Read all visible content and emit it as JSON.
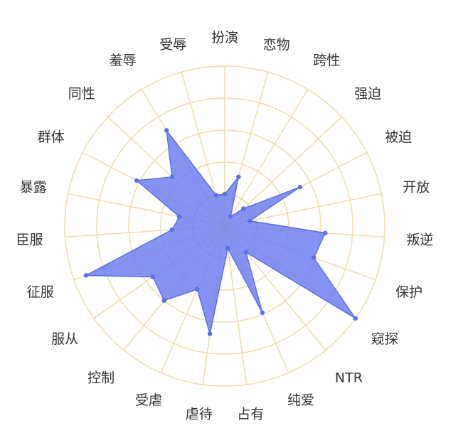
{
  "chart_data": {
    "type": "radar",
    "title": "",
    "categories": [
      "扮演",
      "恋物",
      "跨性",
      "强迫",
      "被迫",
      "开放",
      "叛逆",
      "保护",
      "窥探",
      "NTR",
      "纯爱",
      "占有",
      "虐待",
      "受虐",
      "控制",
      "服从",
      "征服",
      "臣服",
      "暴露",
      "群体",
      "同性",
      "羞辱",
      "受辱"
    ],
    "values": [
      20,
      32,
      7,
      16,
      53,
      16,
      63,
      59,
      100,
      21,
      59,
      14,
      68,
      43,
      60,
      55,
      92,
      33,
      29,
      62,
      45,
      70,
      20
    ],
    "range": [
      0,
      100
    ],
    "ring_count": 5,
    "grid": true,
    "colors": {
      "fill": "#6a7df0",
      "line": "#5b6fe6",
      "point": "#5b6fe6",
      "grid": "#ecdcaa",
      "label": "#333333"
    }
  }
}
